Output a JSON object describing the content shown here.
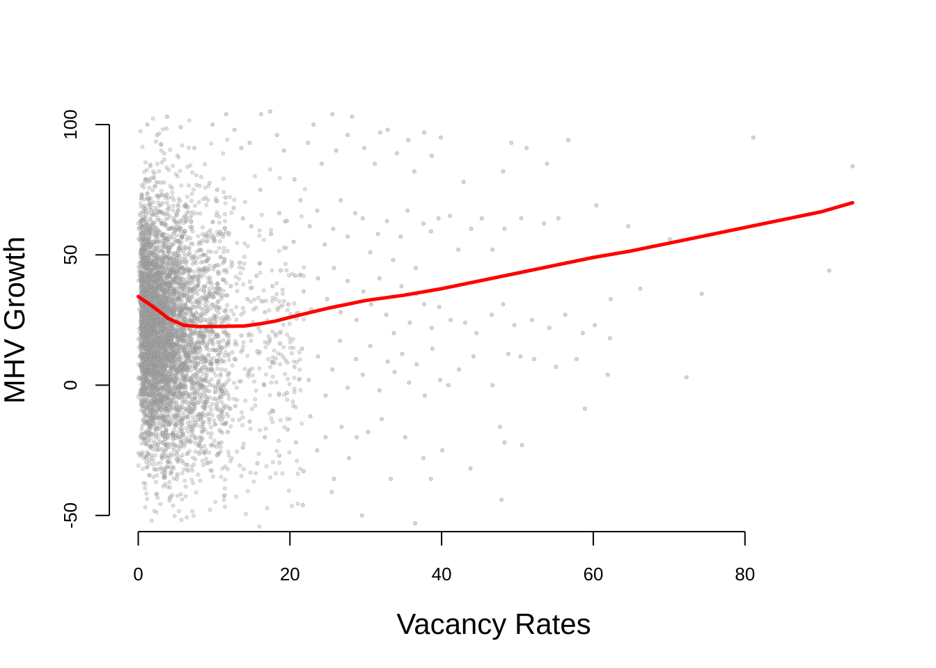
{
  "chart_data": {
    "type": "scatter",
    "title": "",
    "xlabel": "Vacancy Rates",
    "ylabel": "MHV Growth",
    "xlim": [
      -0.3,
      95
    ],
    "ylim": [
      -55,
      106
    ],
    "x_ticks": [
      0,
      20,
      40,
      60,
      80
    ],
    "y_ticks": [
      -50,
      0,
      50,
      100
    ],
    "x_tick_labels": [
      "0",
      "20",
      "40",
      "60",
      "80"
    ],
    "y_tick_labels": [
      "-50",
      "0",
      "50",
      "100"
    ],
    "grid": false,
    "legend": "none",
    "point_color": "#a6a6a6",
    "smoother_color": "#ff0000",
    "series": [
      {
        "kind": "points",
        "points": [
          [
            1.2,
            100
          ],
          [
            2.5,
            96
          ],
          [
            3.8,
            103
          ],
          [
            5.6,
            99
          ],
          [
            7.4,
            91
          ],
          [
            9.8,
            100
          ],
          [
            11.6,
            104
          ],
          [
            12.7,
            98
          ],
          [
            13.6,
            91
          ],
          [
            14.7,
            93
          ],
          [
            16.2,
            104
          ],
          [
            17.4,
            105
          ],
          [
            18.3,
            96
          ],
          [
            19.2,
            90
          ],
          [
            20.6,
            79
          ],
          [
            22.4,
            93
          ],
          [
            23.1,
            100
          ],
          [
            24.2,
            85
          ],
          [
            25.6,
            104
          ],
          [
            26.1,
            90
          ],
          [
            27.6,
            96
          ],
          [
            28.2,
            103
          ],
          [
            29.8,
            91
          ],
          [
            31.2,
            85
          ],
          [
            31.9,
            97
          ],
          [
            32.9,
            98
          ],
          [
            34.1,
            89
          ],
          [
            35.6,
            94
          ],
          [
            36.4,
            82
          ],
          [
            37.7,
            97
          ],
          [
            38.7,
            88
          ],
          [
            39.9,
            95
          ],
          [
            42.9,
            78
          ],
          [
            48.1,
            82
          ],
          [
            49.2,
            93
          ],
          [
            51.2,
            91
          ],
          [
            53.9,
            85
          ],
          [
            56.7,
            94
          ],
          [
            81.1,
            95
          ],
          [
            94.2,
            84
          ],
          [
            10.4,
            75
          ],
          [
            11.5,
            72
          ],
          [
            12.6,
            68
          ],
          [
            13.8,
            64
          ],
          [
            14.9,
            61
          ],
          [
            16.1,
            75
          ],
          [
            17.5,
            58
          ],
          [
            18.6,
            66
          ],
          [
            19.6,
            63
          ],
          [
            20.5,
            55
          ],
          [
            21.4,
            71
          ],
          [
            22.6,
            61
          ],
          [
            23.6,
            67
          ],
          [
            24.6,
            54
          ],
          [
            25.7,
            60
          ],
          [
            26.7,
            71
          ],
          [
            27.6,
            57
          ],
          [
            28.6,
            66
          ],
          [
            29.6,
            64
          ],
          [
            30.6,
            51
          ],
          [
            31.6,
            58
          ],
          [
            32.8,
            63
          ],
          [
            33.6,
            48
          ],
          [
            34.6,
            57
          ],
          [
            35.5,
            67
          ],
          [
            36.6,
            45
          ],
          [
            37.6,
            62
          ],
          [
            38.6,
            59
          ],
          [
            39.6,
            64
          ],
          [
            41.1,
            65
          ],
          [
            42.2,
            52
          ],
          [
            43.9,
            60
          ],
          [
            45.3,
            64
          ],
          [
            46.7,
            52
          ],
          [
            48.3,
            60
          ],
          [
            50.5,
            64
          ],
          [
            53.5,
            62
          ],
          [
            55.4,
            64
          ],
          [
            60.4,
            69
          ],
          [
            62.3,
            33
          ],
          [
            64.6,
            61
          ],
          [
            66.2,
            37
          ],
          [
            70.1,
            56
          ],
          [
            74.3,
            35
          ],
          [
            91.1,
            44
          ],
          [
            11.3,
            44
          ],
          [
            12.2,
            38
          ],
          [
            13.4,
            47
          ],
          [
            14.4,
            33
          ],
          [
            15.6,
            42
          ],
          [
            16.7,
            28
          ],
          [
            17.7,
            38
          ],
          [
            18.8,
            44
          ],
          [
            19.8,
            31
          ],
          [
            20.7,
            42
          ],
          [
            21.8,
            36
          ],
          [
            22.8,
            29
          ],
          [
            23.7,
            41
          ],
          [
            24.9,
            33
          ],
          [
            25.8,
            45
          ],
          [
            26.7,
            28
          ],
          [
            27.6,
            40
          ],
          [
            28.8,
            25
          ],
          [
            29.7,
            36
          ],
          [
            30.7,
            31
          ],
          [
            31.8,
            41
          ],
          [
            32.7,
            27
          ],
          [
            33.7,
            20
          ],
          [
            34.7,
            38
          ],
          [
            35.8,
            24
          ],
          [
            36.7,
            35
          ],
          [
            37.7,
            31
          ],
          [
            38.7,
            22
          ],
          [
            39.7,
            30
          ],
          [
            41.2,
            25
          ],
          [
            43.1,
            24
          ],
          [
            44.6,
            20
          ],
          [
            46.6,
            27
          ],
          [
            48.1,
            31
          ],
          [
            49.6,
            23
          ],
          [
            51.9,
            25
          ],
          [
            54.2,
            22
          ],
          [
            56.3,
            27
          ],
          [
            58.6,
            20
          ],
          [
            60.2,
            23
          ],
          [
            62.2,
            18
          ],
          [
            11.7,
            16
          ],
          [
            12.7,
            10
          ],
          [
            13.6,
            19
          ],
          [
            14.6,
            5
          ],
          [
            15.7,
            13
          ],
          [
            16.6,
            0
          ],
          [
            17.7,
            9
          ],
          [
            18.7,
            16
          ],
          [
            19.6,
            -3
          ],
          [
            20.6,
            7
          ],
          [
            21.6,
            14
          ],
          [
            22.5,
            2
          ],
          [
            23.7,
            11
          ],
          [
            24.7,
            -4
          ],
          [
            25.6,
            6
          ],
          [
            26.6,
            17
          ],
          [
            27.6,
            -1
          ],
          [
            28.7,
            10
          ],
          [
            29.6,
            4
          ],
          [
            30.6,
            15
          ],
          [
            31.8,
            -2
          ],
          [
            32.9,
            9
          ],
          [
            33.8,
            5
          ],
          [
            34.8,
            12
          ],
          [
            35.7,
            1
          ],
          [
            36.7,
            8
          ],
          [
            37.8,
            -4
          ],
          [
            38.8,
            14
          ],
          [
            39.8,
            2
          ],
          [
            40.9,
            0
          ],
          [
            42.3,
            6
          ],
          [
            44.2,
            11
          ],
          [
            46.7,
            0
          ],
          [
            48.8,
            12
          ],
          [
            50.4,
            11
          ],
          [
            52.2,
            10
          ],
          [
            55.1,
            7
          ],
          [
            57.8,
            10
          ],
          [
            61.9,
            4
          ],
          [
            72.3,
            3
          ],
          [
            10.6,
            -12
          ],
          [
            11.8,
            -18
          ],
          [
            12.8,
            -8
          ],
          [
            13.8,
            -24
          ],
          [
            14.7,
            -14
          ],
          [
            15.7,
            -30
          ],
          [
            16.7,
            -20
          ],
          [
            17.8,
            -10
          ],
          [
            18.6,
            -27
          ],
          [
            19.7,
            -17
          ],
          [
            20.8,
            -22
          ],
          [
            21.8,
            -33
          ],
          [
            22.7,
            -12
          ],
          [
            23.6,
            -25
          ],
          [
            24.7,
            -20
          ],
          [
            25.8,
            -36
          ],
          [
            26.8,
            -16
          ],
          [
            27.8,
            -28
          ],
          [
            28.8,
            -20
          ],
          [
            30.3,
            -18
          ],
          [
            32.1,
            -13
          ],
          [
            33.3,
            -36
          ],
          [
            35.2,
            -20
          ],
          [
            37.6,
            -28
          ],
          [
            38.6,
            -36
          ],
          [
            40.1,
            -25
          ],
          [
            43.8,
            -32
          ],
          [
            47.7,
            -16
          ],
          [
            48.3,
            -22
          ],
          [
            50.6,
            -23
          ],
          [
            58.9,
            -9
          ],
          [
            47.9,
            -44
          ],
          [
            29.5,
            -50
          ],
          [
            36.5,
            -53
          ],
          [
            25.5,
            -41
          ],
          [
            21.7,
            -46
          ]
        ]
      },
      {
        "kind": "smoother",
        "points": [
          [
            0,
            34
          ],
          [
            2,
            30
          ],
          [
            4,
            25.5
          ],
          [
            6,
            23
          ],
          [
            8,
            22.5
          ],
          [
            10,
            22.5
          ],
          [
            12,
            22.6
          ],
          [
            14,
            22.7
          ],
          [
            16,
            23.5
          ],
          [
            18,
            24.5
          ],
          [
            20,
            26
          ],
          [
            25,
            29.5
          ],
          [
            30,
            32.5
          ],
          [
            35,
            34.5
          ],
          [
            40,
            37
          ],
          [
            45,
            40
          ],
          [
            50,
            43
          ],
          [
            55,
            46
          ],
          [
            60,
            49
          ],
          [
            65,
            51.5
          ],
          [
            70,
            54.5
          ],
          [
            75,
            57.5
          ],
          [
            80,
            60.5
          ],
          [
            85,
            63.5
          ],
          [
            90,
            66.5
          ],
          [
            94.2,
            70
          ]
        ]
      }
    ]
  }
}
